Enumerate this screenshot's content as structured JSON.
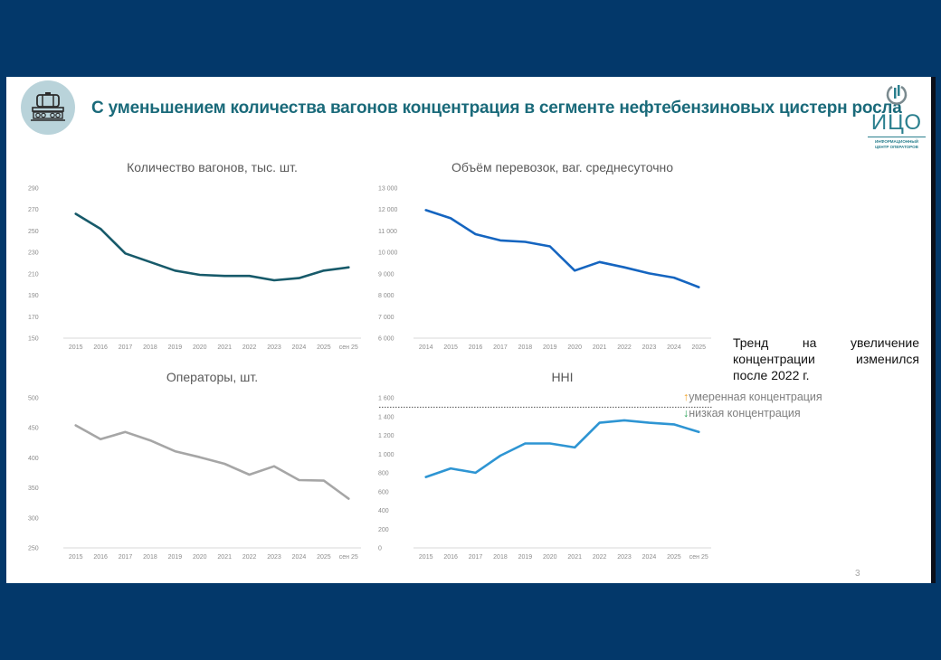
{
  "slide": {
    "title": "С уменьшением количества вагонов концентрация в сегменте нефтебензиновых цистерн росла",
    "header_icon": "tank-wagon-icon",
    "logo": {
      "icon": "ico-logo-icon",
      "name": "ИЦО",
      "subtitle_line1": "ИНФОРМАЦИОННЫЙ",
      "subtitle_line2": "ЦЕНТР ОПЕРАТОРОВ"
    },
    "note": {
      "line1": [
        "Тренд",
        "на",
        "увеличение"
      ],
      "line2": [
        "концентрации",
        "изменился"
      ],
      "line3": "после 2022 г."
    },
    "legend": {
      "up_arrow": "↑",
      "up_label": "умеренная концентрация",
      "down_arrow": "↓",
      "down_label": "низкая концентрация"
    },
    "page_number": "3",
    "colors": {
      "background": "#03386a",
      "title": "#1a6a7a",
      "wagons_line": "#175a6a",
      "volume_line": "#1565c0",
      "operators_line": "#a6a6a6",
      "hhi_line": "#2e95d3",
      "moderate_arrow": "#f0a020",
      "low_arrow": "#1fa050"
    }
  },
  "chart_data": [
    {
      "type": "line",
      "title": "Количество вагонов, тыс. шт.",
      "xlabel": "",
      "ylabel": "",
      "categories": [
        "2015",
        "2016",
        "2017",
        "2018",
        "2019",
        "2020",
        "2021",
        "2022",
        "2023",
        "2024",
        "2025",
        "сен 25"
      ],
      "values": [
        266,
        252,
        229,
        221,
        213,
        209,
        208,
        208,
        204,
        206,
        213,
        216
      ],
      "ylim": [
        150,
        290
      ],
      "yticks": [
        150,
        170,
        190,
        210,
        230,
        250,
        270,
        290
      ],
      "ytick_labels": [
        "150",
        "170",
        "190",
        "210",
        "230",
        "250",
        "270",
        "290"
      ],
      "color": "#175a6a",
      "grid": false
    },
    {
      "type": "line",
      "title": "Объём перевозок, ваг. среднесуточно",
      "xlabel": "",
      "ylabel": "",
      "categories": [
        "2014",
        "2015",
        "2016",
        "2017",
        "2018",
        "2019",
        "2020",
        "2021",
        "2022",
        "2023",
        "2024",
        "2025"
      ],
      "values": [
        11970,
        11590,
        10850,
        10560,
        10490,
        10280,
        9150,
        9550,
        9300,
        9020,
        8820,
        8380
      ],
      "ylim": [
        6000,
        13000
      ],
      "yticks": [
        6000,
        7000,
        8000,
        9000,
        10000,
        11000,
        12000,
        13000
      ],
      "ytick_labels": [
        "6 000",
        "7 000",
        "8 000",
        "9 000",
        "10 000",
        "11 000",
        "12 000",
        "13 000"
      ],
      "color": "#1565c0",
      "grid": false
    },
    {
      "type": "line",
      "title": "Операторы, шт.",
      "xlabel": "",
      "ylabel": "",
      "categories": [
        "2015",
        "2016",
        "2017",
        "2018",
        "2019",
        "2020",
        "2021",
        "2022",
        "2023",
        "2024",
        "2025",
        "сен 25"
      ],
      "values": [
        454,
        431,
        443,
        429,
        411,
        401,
        390,
        372,
        386,
        363,
        362,
        332
      ],
      "ylim": [
        250,
        500
      ],
      "yticks": [
        250,
        300,
        350,
        400,
        450,
        500
      ],
      "ytick_labels": [
        "250",
        "300",
        "350",
        "400",
        "450",
        "500"
      ],
      "color": "#a6a6a6",
      "grid": false
    },
    {
      "type": "line",
      "title": "HHI",
      "xlabel": "",
      "ylabel": "",
      "categories": [
        "2015",
        "2016",
        "2017",
        "2018",
        "2019",
        "2020",
        "2021",
        "2022",
        "2023",
        "2024",
        "2025",
        "сен 25"
      ],
      "values": [
        756,
        847,
        801,
        983,
        1113,
        1113,
        1071,
        1334,
        1360,
        1334,
        1317,
        1236
      ],
      "ylim": [
        0,
        1600
      ],
      "yticks": [
        0,
        200,
        400,
        600,
        800,
        1000,
        1200,
        1400,
        1600
      ],
      "ytick_labels": [
        "0",
        "200",
        "400",
        "600",
        "800",
        "1 000",
        "1 200",
        "1 400",
        "1 600"
      ],
      "threshold": 1500,
      "color": "#2e95d3",
      "grid": false
    }
  ]
}
